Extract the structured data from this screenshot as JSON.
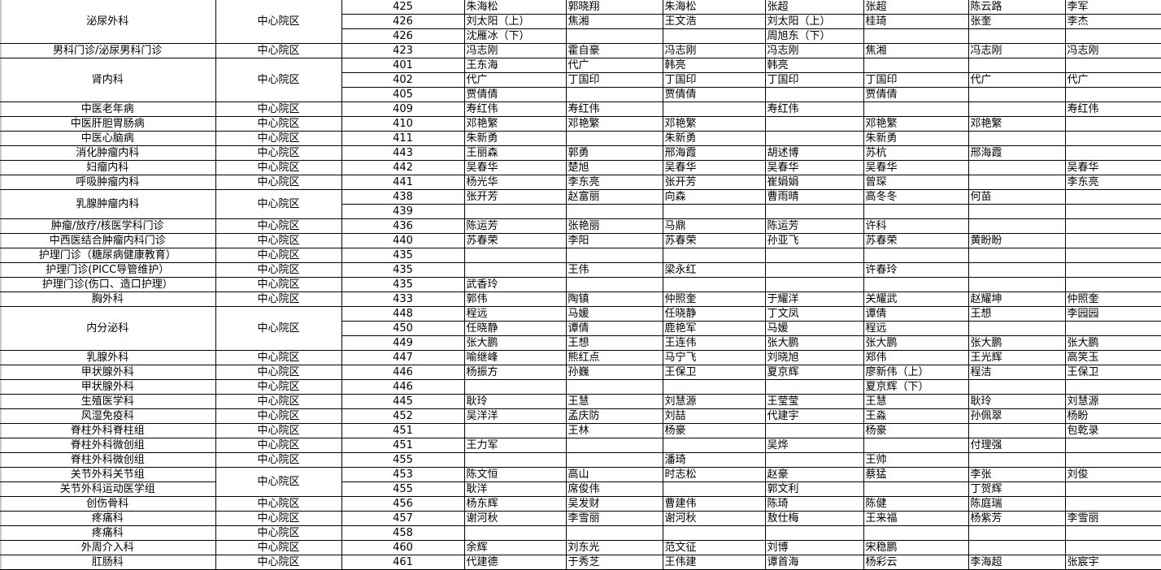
{
  "schedule": {
    "groups": [
      {
        "district": "中心院区",
        "depts": [
          {
            "name": "泌尿外科",
            "rooms": [
              {
                "room": "425",
                "doctors": [
                  "朱海松",
                  "郭晓翔",
                  "朱海松",
                  "张超",
                  "张超",
                  "陈云路",
                  "李军"
                ]
              },
              {
                "room": "426",
                "doctors": [
                  "刘太阳（上）",
                  "焦湘",
                  "王文浩",
                  "刘太阳（上）",
                  "桂琦",
                  "张奎",
                  "李杰"
                ]
              },
              {
                "room": "426",
                "doctors": [
                  "沈雁冰（下）",
                  "",
                  "",
                  "周旭东（下）",
                  "",
                  "",
                  ""
                ]
              }
            ]
          }
        ]
      },
      {
        "district": "中心院区",
        "depts": [
          {
            "name": "男科门诊/泌尿男科门诊",
            "rooms": [
              {
                "room": "423",
                "doctors": [
                  "冯志刚",
                  "霍自豪",
                  "冯志刚",
                  "冯志刚",
                  "焦湘",
                  "冯志刚",
                  "冯志刚"
                ]
              }
            ]
          }
        ]
      },
      {
        "district": "中心院区",
        "depts": [
          {
            "name": "肾内科",
            "rooms": [
              {
                "room": "401",
                "doctors": [
                  "王东海",
                  "代广",
                  "韩亮",
                  "韩亮",
                  "",
                  "",
                  ""
                ]
              },
              {
                "room": "402",
                "doctors": [
                  "代广",
                  "丁国印",
                  "丁国印",
                  "丁国印",
                  "丁国印",
                  "代广",
                  "代广"
                ]
              },
              {
                "room": "405",
                "doctors": [
                  "贾倩倩",
                  "",
                  "贾倩倩",
                  "",
                  "贾倩倩",
                  "",
                  ""
                ]
              }
            ]
          }
        ]
      },
      {
        "district": "中心院区",
        "depts": [
          {
            "name": "中医老年病",
            "rooms": [
              {
                "room": "409",
                "doctors": [
                  "寿红伟",
                  "寿红伟",
                  "",
                  "寿红伟",
                  "",
                  "",
                  "寿红伟"
                ]
              }
            ]
          }
        ]
      },
      {
        "district": "中心院区",
        "depts": [
          {
            "name": "中医肝胆胃肠病",
            "rooms": [
              {
                "room": "410",
                "doctors": [
                  "邓艳繁",
                  "邓艳繁",
                  "邓艳繁",
                  "",
                  "邓艳繁",
                  "邓艳繁",
                  ""
                ]
              }
            ]
          }
        ]
      },
      {
        "district": "中心院区",
        "depts": [
          {
            "name": "中医心脑病",
            "rooms": [
              {
                "room": "411",
                "doctors": [
                  "朱新勇",
                  "",
                  "朱新勇",
                  "",
                  "朱新勇",
                  "",
                  ""
                ]
              }
            ]
          }
        ]
      },
      {
        "district": "中心院区",
        "depts": [
          {
            "name": "消化肿瘤内科",
            "rooms": [
              {
                "room": "443",
                "doctors": [
                  "王丽森",
                  "郭勇",
                  "邢海霞",
                  "胡述博",
                  "苏杭",
                  "邢海霞",
                  ""
                ]
              }
            ]
          }
        ]
      },
      {
        "district": "中心院区",
        "depts": [
          {
            "name": "妇瘤内科",
            "rooms": [
              {
                "room": "442",
                "doctors": [
                  "吴春华",
                  "楚旭",
                  "吴春华",
                  "吴春华",
                  "吴春华",
                  "",
                  "吴春华"
                ]
              }
            ]
          }
        ]
      },
      {
        "district": "中心院区",
        "depts": [
          {
            "name": "呼吸肿瘤内科",
            "rooms": [
              {
                "room": "441",
                "doctors": [
                  "杨光华",
                  "李东亮",
                  "张开芳",
                  "崔娟娟",
                  "曾琛",
                  "",
                  "李东亮"
                ]
              }
            ]
          }
        ]
      },
      {
        "district": "中心院区",
        "depts": [
          {
            "name": "乳腺肿瘤内科",
            "rooms": [
              {
                "room": "438",
                "doctors": [
                  "张开芳",
                  "赵富丽",
                  "向森",
                  "曹雨晴",
                  "高冬冬",
                  "何苗",
                  ""
                ]
              },
              {
                "room": "439",
                "doctors": [
                  "",
                  "",
                  "",
                  "",
                  "",
                  "",
                  ""
                ]
              }
            ]
          }
        ]
      },
      {
        "district": "中心院区",
        "depts": [
          {
            "name": "肿瘤/放疗/核医学科门诊",
            "rooms": [
              {
                "room": "436",
                "doctors": [
                  "陈运芳",
                  "张艳丽",
                  "马鼎",
                  "陈运芳",
                  "许科",
                  "",
                  ""
                ]
              }
            ]
          }
        ]
      },
      {
        "district": "中心院区",
        "depts": [
          {
            "name": "中西医结合肿瘤内科门诊",
            "rooms": [
              {
                "room": "440",
                "doctors": [
                  "苏春荣",
                  "李阳",
                  "苏春荣",
                  "孙亚飞",
                  "苏春荣",
                  "黄盼盼",
                  ""
                ]
              }
            ]
          }
        ]
      },
      {
        "district": "中心院区",
        "depts": [
          {
            "name": "护理门诊（糖尿病健康教育）",
            "rooms": [
              {
                "room": "435",
                "doctors": [
                  "",
                  "",
                  "",
                  "",
                  "",
                  "",
                  ""
                ]
              }
            ]
          }
        ]
      },
      {
        "district": "中心院区",
        "depts": [
          {
            "name": "护理门诊(PICC导管维护）",
            "rooms": [
              {
                "room": "435",
                "doctors": [
                  "",
                  "王伟",
                  "梁永红",
                  "",
                  "许春玲",
                  "",
                  ""
                ]
              }
            ]
          }
        ]
      },
      {
        "district": "中心院区",
        "depts": [
          {
            "name": "护理门诊(伤口、造口护理）",
            "rooms": [
              {
                "room": "435",
                "doctors": [
                  "武香玲",
                  "",
                  "",
                  "",
                  "",
                  "",
                  ""
                ]
              }
            ]
          }
        ]
      },
      {
        "district": "中心院区",
        "depts": [
          {
            "name": "胸外科",
            "rooms": [
              {
                "room": "433",
                "doctors": [
                  "郭伟",
                  "陶镇",
                  "仲照奎",
                  "于耀洋",
                  "关耀武",
                  "赵耀坤",
                  "仲照奎"
                ]
              }
            ]
          }
        ]
      },
      {
        "district": "中心院区",
        "depts": [
          {
            "name": "内分泌科",
            "rooms": [
              {
                "room": "448",
                "doctors": [
                  "程远",
                  "马媛",
                  "任晓静",
                  "丁文凤",
                  "谭倩",
                  "王想",
                  "李园园"
                ]
              },
              {
                "room": "450",
                "doctors": [
                  "任晓静",
                  "谭倩",
                  "鹿艳军",
                  "马媛",
                  "程远",
                  "",
                  ""
                ]
              },
              {
                "room": "449",
                "doctors": [
                  "张大鹏",
                  "王想",
                  "王连伟",
                  "张大鹏",
                  "张大鹏",
                  "张大鹏",
                  "张大鹏"
                ]
              }
            ]
          }
        ]
      },
      {
        "district": "中心院区",
        "depts": [
          {
            "name": "乳腺外科",
            "rooms": [
              {
                "room": "447",
                "doctors": [
                  "喻继峰",
                  "熊红点",
                  "马宁飞",
                  "刘晓旭",
                  "郑伟",
                  "王光辉",
                  "高笑玉"
                ]
              }
            ]
          }
        ]
      },
      {
        "district": "中心院区",
        "depts": [
          {
            "name": "甲状腺外科",
            "rooms": [
              {
                "room": "446",
                "doctors": [
                  "杨振方",
                  "孙巍",
                  "王保卫",
                  "夏京辉",
                  "廖新伟（上）",
                  "程洁",
                  "王保卫"
                ]
              }
            ]
          }
        ]
      },
      {
        "district": "中心院区",
        "depts": [
          {
            "name": "甲状腺外科",
            "rooms": [
              {
                "room": "446",
                "doctors": [
                  "",
                  "",
                  "",
                  "",
                  "夏京辉（下）",
                  "",
                  ""
                ]
              }
            ]
          }
        ]
      },
      {
        "district": "中心院区",
        "depts": [
          {
            "name": "生殖医学科",
            "rooms": [
              {
                "room": "445",
                "doctors": [
                  "耿玲",
                  "王慧",
                  "刘慧源",
                  "王莹莹",
                  "王慧",
                  "耿玲",
                  "刘慧源"
                ]
              }
            ]
          }
        ]
      },
      {
        "district": "中心院区",
        "depts": [
          {
            "name": "风湿免疫科",
            "rooms": [
              {
                "room": "452",
                "doctors": [
                  "吴洋洋",
                  "孟庆防",
                  "刘喆",
                  "代建宇",
                  "王淼",
                  "孙佩翠",
                  "杨盼"
                ]
              }
            ]
          }
        ]
      },
      {
        "district": "中心院区",
        "depts": [
          {
            "name": "脊柱外科脊柱组",
            "rooms": [
              {
                "room": "451",
                "doctors": [
                  "",
                  "王林",
                  "杨豪",
                  "",
                  "杨豪",
                  "",
                  "包乾录"
                ]
              }
            ]
          }
        ]
      },
      {
        "district": "中心院区",
        "depts": [
          {
            "name": "脊柱外科微创组",
            "rooms": [
              {
                "room": "451",
                "doctors": [
                  "王力军",
                  "",
                  "",
                  "吴烨",
                  "",
                  "付理强",
                  ""
                ]
              }
            ]
          }
        ]
      },
      {
        "district": "中心院区",
        "depts": [
          {
            "name": "脊柱外科微创组",
            "rooms": [
              {
                "room": "455",
                "doctors": [
                  "",
                  "",
                  "潘琦",
                  "",
                  "王帅",
                  "",
                  ""
                ]
              }
            ]
          }
        ]
      },
      {
        "district": "中心院区",
        "depts": [
          {
            "name": "关节外科关节组",
            "rooms": [
              {
                "room": "453",
                "doctors": [
                  "陈文恒",
                  "高山",
                  "时志松",
                  "赵豪",
                  "蔡猛",
                  "李张",
                  "刘俊"
                ]
              }
            ]
          },
          {
            "name": "关节外科运动医学组",
            "rooms": [
              {
                "room": "455",
                "doctors": [
                  "耿洋",
                  "席俊伟",
                  "",
                  "郭文利",
                  "",
                  "丁贺辉",
                  ""
                ]
              }
            ]
          }
        ]
      },
      {
        "district": "中心院区",
        "depts": [
          {
            "name": "创伤骨科",
            "rooms": [
              {
                "room": "456",
                "doctors": [
                  "杨东辉",
                  "吴发财",
                  "曹建伟",
                  "陈琦",
                  "陈健",
                  "陈庭瑞",
                  ""
                ]
              }
            ]
          }
        ]
      },
      {
        "district": "中心院区",
        "depts": [
          {
            "name": "疼痛科",
            "rooms": [
              {
                "room": "457",
                "doctors": [
                  "谢河秋",
                  "李雪丽",
                  "谢河秋",
                  "敖仕梅",
                  "王来福",
                  "杨紫芳",
                  "李雪丽"
                ]
              }
            ]
          }
        ]
      },
      {
        "district": "中心院区",
        "depts": [
          {
            "name": "疼痛科",
            "rooms": [
              {
                "room": "458",
                "doctors": [
                  "",
                  "",
                  "",
                  "",
                  "",
                  "",
                  ""
                ]
              }
            ]
          }
        ]
      },
      {
        "district": "中心院区",
        "depts": [
          {
            "name": "外周介入科",
            "rooms": [
              {
                "room": "460",
                "doctors": [
                  "余辉",
                  "刘东光",
                  "范文征",
                  "刘博",
                  "宋稳鹏",
                  "",
                  ""
                ]
              }
            ]
          }
        ]
      },
      {
        "district": "中心院区",
        "depts": [
          {
            "name": "肛肠科",
            "rooms": [
              {
                "room": "461",
                "doctors": [
                  "代建德",
                  "于秀芝",
                  "王伟建",
                  "谭首海",
                  "杨彩云",
                  "李海超",
                  "张宸宇"
                ]
              }
            ]
          }
        ]
      }
    ]
  }
}
